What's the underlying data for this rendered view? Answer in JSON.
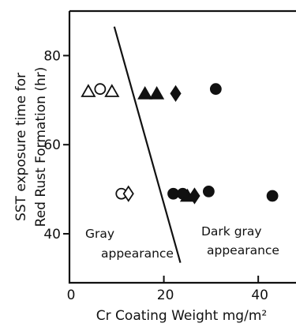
{
  "chart_data": {
    "type": "scatter",
    "title": "",
    "xlabel": "Cr Coating Weight mg/m²",
    "ylabel_lines": [
      "SST exposure time for",
      "Red Rust Formation (hr)"
    ],
    "xlim": [
      0,
      48
    ],
    "ylim": [
      29,
      90
    ],
    "xticks": [
      0,
      20,
      40
    ],
    "yticks": [
      40,
      60,
      80
    ],
    "grid": false,
    "series": [
      {
        "marker": "open-triangle",
        "points": [
          {
            "x": 4,
            "y": 72
          },
          {
            "x": 9,
            "y": 72
          }
        ]
      },
      {
        "marker": "open-circle",
        "points": [
          {
            "x": 6.5,
            "y": 72.5
          },
          {
            "x": 11,
            "y": 49
          }
        ]
      },
      {
        "marker": "open-diamond",
        "points": [
          {
            "x": 12.5,
            "y": 49
          }
        ]
      },
      {
        "marker": "filled-triangle",
        "points": [
          {
            "x": 16,
            "y": 71.5
          },
          {
            "x": 18.5,
            "y": 71.5
          },
          {
            "x": 25,
            "y": 48.5
          }
        ]
      },
      {
        "marker": "filled-diamond",
        "points": [
          {
            "x": 22.5,
            "y": 71.5
          },
          {
            "x": 26.5,
            "y": 48.5
          }
        ]
      },
      {
        "marker": "filled-circle",
        "points": [
          {
            "x": 31,
            "y": 72.5
          },
          {
            "x": 22,
            "y": 49
          },
          {
            "x": 24,
            "y": 49
          },
          {
            "x": 29.5,
            "y": 49.5
          },
          {
            "x": 43,
            "y": 48.5
          }
        ]
      }
    ],
    "boundary_line": [
      {
        "x": 9.5,
        "y": 86.5
      },
      {
        "x": 23.5,
        "y": 33.5
      }
    ],
    "annotations": [
      {
        "lines": [
          "Gray",
          "appearance"
        ],
        "region": "left"
      },
      {
        "lines": [
          "Dark gray",
          "appearance"
        ],
        "region": "right"
      }
    ]
  }
}
